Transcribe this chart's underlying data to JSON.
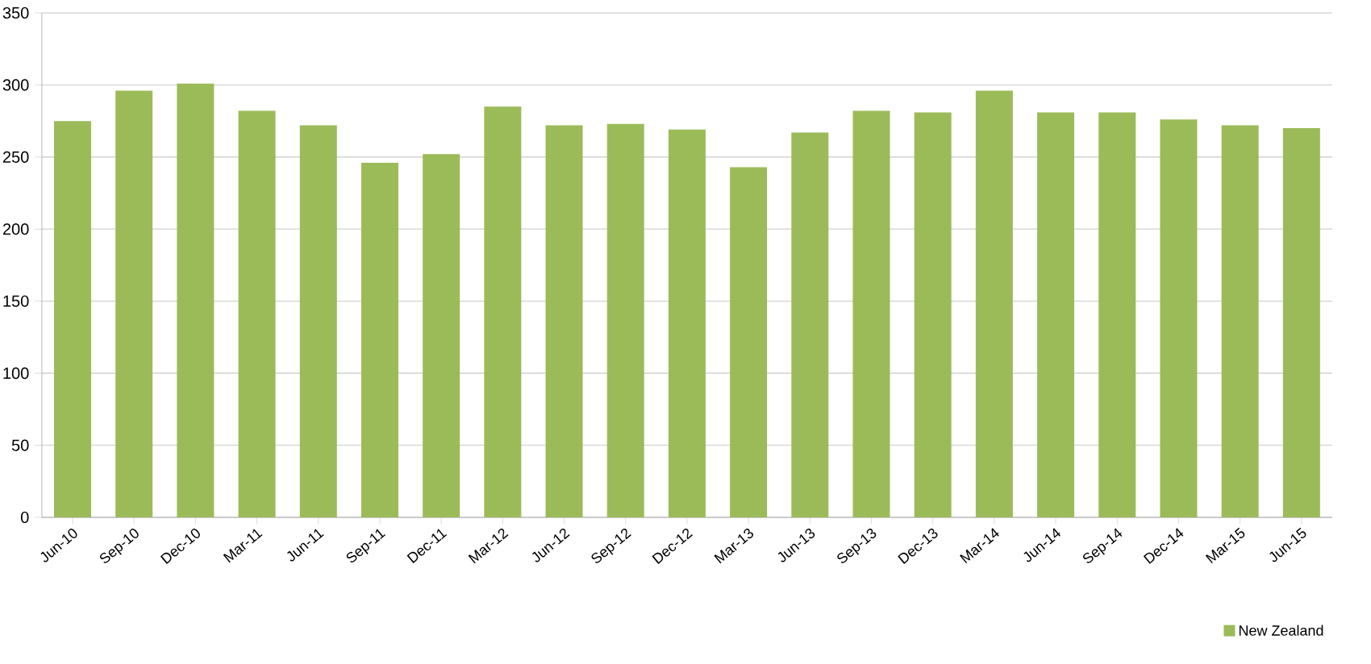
{
  "chart_data": {
    "type": "bar",
    "categories": [
      "Jun-10",
      "Sep-10",
      "Dec-10",
      "Mar-11",
      "Jun-11",
      "Sep-11",
      "Dec-11",
      "Mar-12",
      "Jun-12",
      "Sep-12",
      "Dec-12",
      "Mar-13",
      "Jun-13",
      "Sep-13",
      "Dec-13",
      "Mar-14",
      "Jun-14",
      "Sep-14",
      "Dec-14",
      "Mar-15",
      "Jun-15"
    ],
    "series": [
      {
        "name": "New Zealand",
        "color": "#9bbb59",
        "values": [
          275,
          296,
          301,
          282,
          272,
          246,
          252,
          285,
          272,
          273,
          269,
          243,
          267,
          282,
          281,
          296,
          281,
          281,
          276,
          272,
          270
        ]
      }
    ],
    "ylim": [
      0,
      350
    ],
    "yticks": [
      0,
      50,
      100,
      150,
      200,
      250,
      300,
      350
    ],
    "grid": "y",
    "legend": "bottom right"
  }
}
